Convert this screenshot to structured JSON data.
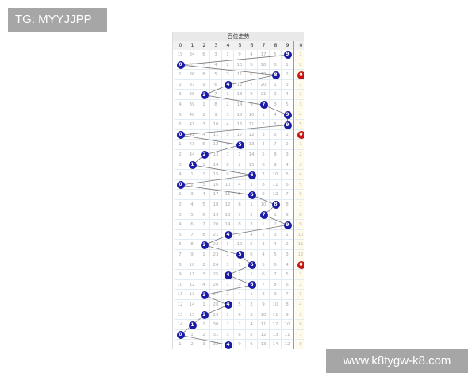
{
  "watermark_top": "TG: MYYJJPP",
  "watermark_bottom": "www.k8tygw-k8.com",
  "chart": {
    "title": "百位走势",
    "columns": [
      "0",
      "1",
      "2",
      "3",
      "4",
      "5",
      "6",
      "7",
      "8",
      "9",
      "0"
    ],
    "hit_color": "#1a1aa6",
    "extra_hit_color": "#c81414",
    "rows": [
      {
        "cells": [
          19,
          34,
          6,
          3,
          1,
          9,
          4,
          17,
          5,
          9
        ],
        "hit": 9,
        "extra": "1"
      },
      {
        "cells": [
          0,
          35,
          7,
          4,
          2,
          10,
          5,
          18,
          6,
          1
        ],
        "hit": 0,
        "extra": "2"
      },
      {
        "cells": [
          1,
          36,
          8,
          5,
          3,
          11,
          6,
          19,
          8,
          2
        ],
        "hit": 8,
        "extra": "0",
        "extra_hit": true
      },
      {
        "cells": [
          2,
          37,
          9,
          6,
          4,
          12,
          7,
          20,
          1,
          3
        ],
        "hit": 4,
        "extra": "1"
      },
      {
        "cells": [
          3,
          38,
          2,
          7,
          1,
          13,
          8,
          21,
          2,
          4
        ],
        "hit": 2,
        "extra": "2"
      },
      {
        "cells": [
          4,
          39,
          1,
          8,
          2,
          14,
          9,
          7,
          3,
          5
        ],
        "hit": 7,
        "extra": "3"
      },
      {
        "cells": [
          5,
          40,
          2,
          9,
          3,
          15,
          10,
          1,
          4,
          9
        ],
        "hit": 9,
        "extra": "4"
      },
      {
        "cells": [
          6,
          41,
          3,
          10,
          4,
          16,
          11,
          2,
          5,
          9
        ],
        "hit": 9,
        "extra": "5"
      },
      {
        "cells": [
          0,
          42,
          4,
          11,
          5,
          17,
          12,
          3,
          6,
          1
        ],
        "hit": 0,
        "extra": "0",
        "extra_hit": true
      },
      {
        "cells": [
          1,
          43,
          5,
          12,
          6,
          5,
          13,
          4,
          7,
          2
        ],
        "hit": 5,
        "extra": "1"
      },
      {
        "cells": [
          2,
          44,
          2,
          13,
          7,
          1,
          14,
          5,
          8,
          3
        ],
        "hit": 2,
        "extra": "2"
      },
      {
        "cells": [
          3,
          1,
          1,
          14,
          8,
          2,
          15,
          6,
          9,
          4
        ],
        "hit": 1,
        "extra": "3"
      },
      {
        "cells": [
          4,
          1,
          2,
          15,
          9,
          3,
          6,
          7,
          10,
          5
        ],
        "hit": 6,
        "extra": "4"
      },
      {
        "cells": [
          0,
          2,
          3,
          16,
          10,
          4,
          1,
          8,
          11,
          6
        ],
        "hit": 0,
        "extra": "5"
      },
      {
        "cells": [
          1,
          3,
          4,
          17,
          11,
          5,
          6,
          9,
          12,
          7
        ],
        "hit": 6,
        "extra": "6"
      },
      {
        "cells": [
          2,
          4,
          5,
          18,
          12,
          6,
          1,
          10,
          8,
          8
        ],
        "hit": 8,
        "extra": "7"
      },
      {
        "cells": [
          3,
          5,
          6,
          19,
          13,
          7,
          2,
          7,
          1,
          9
        ],
        "hit": 7,
        "extra": "8"
      },
      {
        "cells": [
          4,
          6,
          7,
          20,
          14,
          8,
          3,
          1,
          2,
          9
        ],
        "hit": 9,
        "extra": "9"
      },
      {
        "cells": [
          5,
          7,
          8,
          21,
          4,
          9,
          4,
          2,
          3,
          1
        ],
        "hit": 4,
        "extra": "10"
      },
      {
        "cells": [
          6,
          8,
          2,
          22,
          1,
          10,
          5,
          3,
          4,
          2
        ],
        "hit": 2,
        "extra": "11"
      },
      {
        "cells": [
          7,
          9,
          1,
          23,
          2,
          5,
          6,
          4,
          5,
          3
        ],
        "hit": 5,
        "extra": "12"
      },
      {
        "cells": [
          8,
          10,
          2,
          24,
          3,
          1,
          6,
          5,
          6,
          4
        ],
        "hit": 6,
        "extra": "0",
        "extra_hit": true
      },
      {
        "cells": [
          9,
          11,
          3,
          25,
          4,
          2,
          1,
          6,
          7,
          5
        ],
        "hit": 4,
        "extra": "1"
      },
      {
        "cells": [
          10,
          12,
          4,
          26,
          1,
          3,
          6,
          7,
          8,
          6
        ],
        "hit": 6,
        "extra": "2"
      },
      {
        "cells": [
          11,
          13,
          2,
          27,
          2,
          4,
          1,
          8,
          9,
          7
        ],
        "hit": 2,
        "extra": "3"
      },
      {
        "cells": [
          12,
          14,
          1,
          28,
          4,
          5,
          2,
          9,
          10,
          8
        ],
        "hit": 4,
        "extra": "4"
      },
      {
        "cells": [
          13,
          15,
          2,
          29,
          1,
          6,
          3,
          10,
          11,
          9
        ],
        "hit": 2,
        "extra": "5"
      },
      {
        "cells": [
          14,
          1,
          1,
          30,
          2,
          7,
          4,
          11,
          12,
          10
        ],
        "hit": 1,
        "extra": "6"
      },
      {
        "cells": [
          0,
          1,
          2,
          31,
          3,
          8,
          5,
          12,
          13,
          11
        ],
        "hit": 0,
        "extra": "7"
      },
      {
        "cells": [
          1,
          2,
          3,
          32,
          4,
          9,
          6,
          13,
          14,
          12
        ],
        "hit": 4,
        "extra": "8"
      }
    ]
  }
}
